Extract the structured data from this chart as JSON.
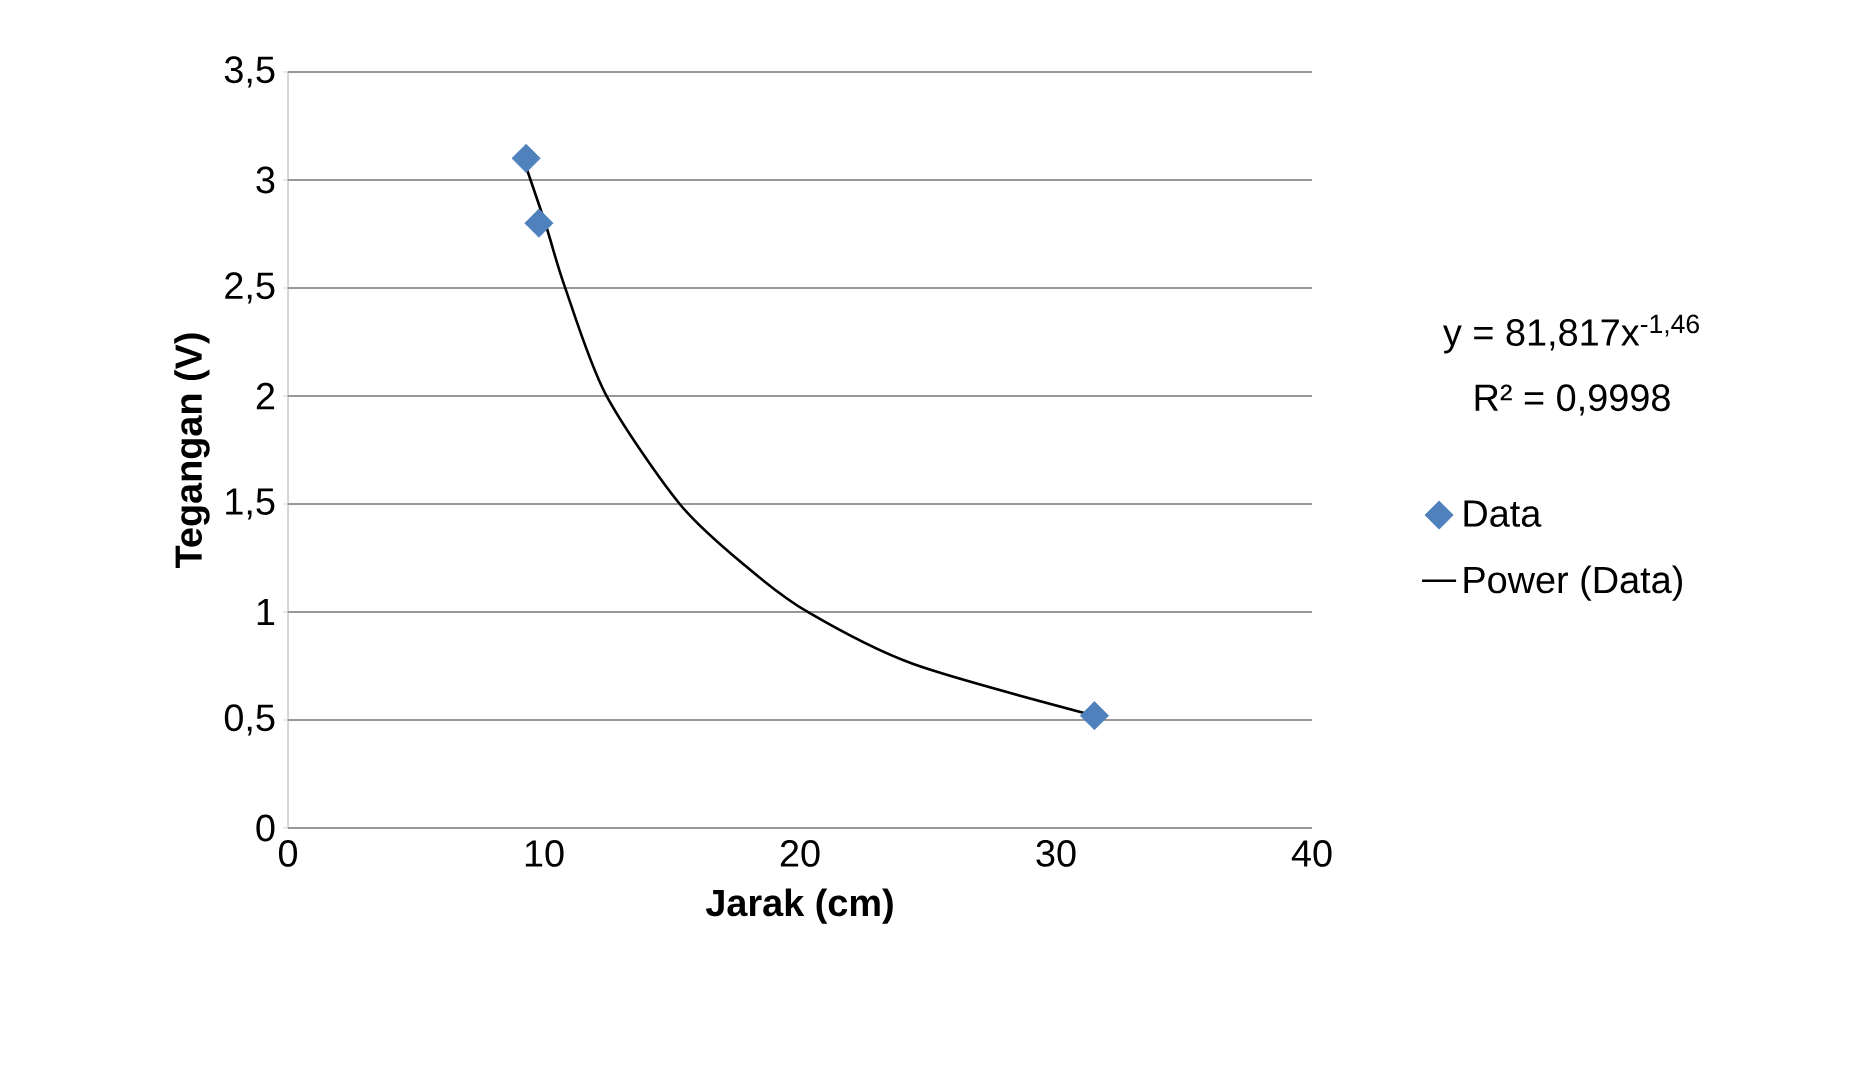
{
  "chart_data": {
    "type": "scatter",
    "xlabel": "Jarak (cm)",
    "ylabel": "Tegangan (V)",
    "xlim": [
      0,
      40
    ],
    "xticks": [
      0,
      10,
      20,
      30,
      40
    ],
    "ylim": [
      0,
      3.5
    ],
    "yticks": [
      0,
      {
        "value": 0.5,
        "label": "0,5"
      },
      1,
      {
        "value": 1.5,
        "label": "1,5"
      },
      2,
      {
        "value": 2.5,
        "label": "2,5"
      },
      3,
      {
        "value": 3.5,
        "label": "3,5"
      }
    ],
    "grid": "y",
    "legend": "right",
    "annotations": [
      "y = 81,817x$^{-1,46}$",
      "R² = 0,9998"
    ],
    "series": [
      {
        "name": "Data",
        "marker": "diamond",
        "color": "#4f81bd",
        "x": [
          9.3,
          9.8,
          31.5
        ],
        "values": [
          3.1,
          2.8,
          0.52
        ]
      },
      {
        "name": "Power (Data)",
        "type": "line",
        "marker": "none",
        "line_style": "solid",
        "color": "#000000",
        "x": [
          9.3,
          10.1,
          10.8,
          12.4,
          15.3,
          17.9,
          20.3,
          24.4,
          31.5
        ],
        "values": [
          3.06,
          2.78,
          2.51,
          2.01,
          1.5,
          1.21,
          1.0,
          0.76,
          0.52
        ]
      }
    ]
  }
}
